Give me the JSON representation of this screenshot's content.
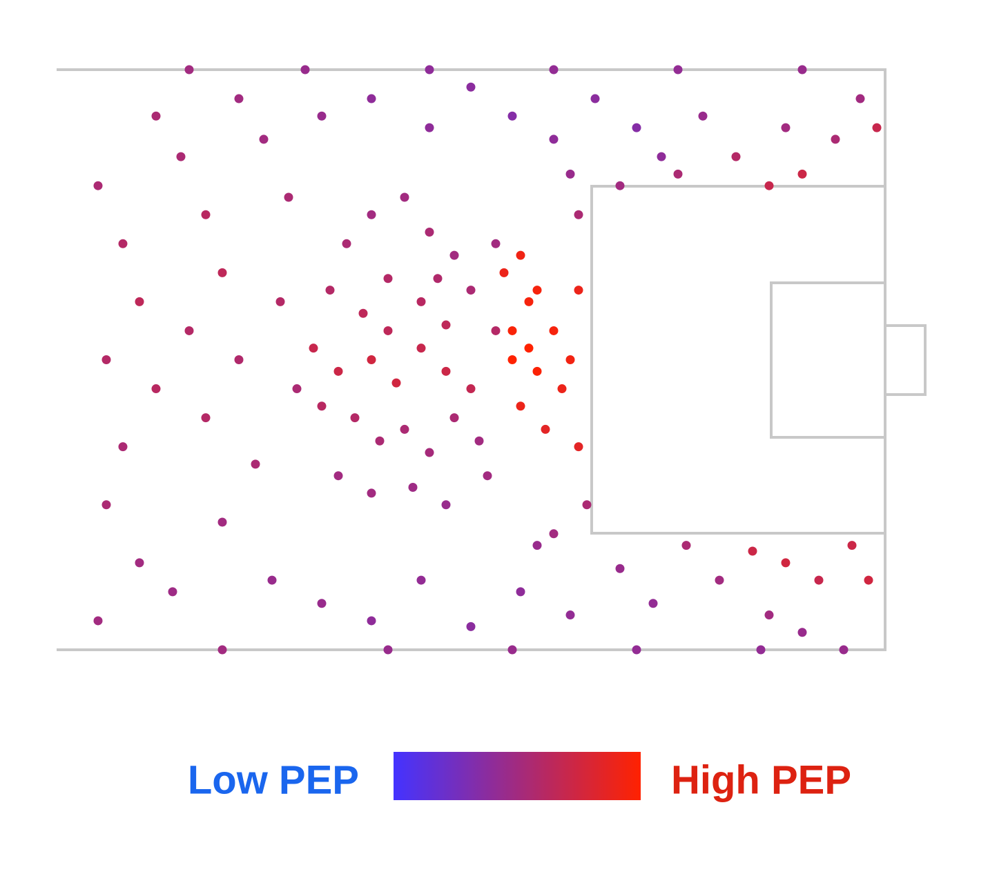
{
  "chart_data": {
    "type": "scatter",
    "x": [
      35,
      38,
      42,
      45,
      48,
      33,
      37,
      40,
      44,
      47,
      50,
      31,
      34,
      38,
      41,
      44,
      47,
      50,
      36,
      39,
      42,
      45,
      48,
      51,
      34,
      38,
      43,
      47,
      52,
      40,
      46,
      32,
      53,
      53,
      54,
      56,
      58,
      55,
      57,
      55,
      58,
      60,
      62,
      61,
      56,
      59,
      63,
      63,
      57,
      5,
      8,
      10,
      6,
      12,
      8,
      6,
      10,
      15,
      18,
      20,
      16,
      22,
      18,
      24,
      20,
      14,
      26,
      25,
      28,
      27,
      29,
      12,
      22,
      5,
      32,
      38,
      45,
      50,
      55,
      60,
      65,
      70,
      73,
      78,
      82,
      86,
      90,
      94,
      97,
      99,
      62,
      68,
      75,
      88,
      16,
      30,
      45,
      60,
      75,
      90,
      32,
      38,
      44,
      50,
      56,
      62,
      68,
      72,
      76,
      80,
      84,
      88,
      92,
      96,
      98,
      86,
      90,
      60,
      58,
      20,
      40,
      55,
      70,
      85,
      95,
      63,
      64
    ],
    "y": [
      70,
      75,
      78,
      72,
      68,
      62,
      58,
      64,
      60,
      56,
      62,
      52,
      48,
      50,
      46,
      52,
      48,
      45,
      40,
      36,
      38,
      34,
      40,
      36,
      30,
      27,
      28,
      25,
      30,
      55,
      64,
      42,
      70,
      55,
      65,
      68,
      62,
      55,
      52,
      50,
      48,
      55,
      50,
      45,
      42,
      38,
      62,
      35,
      60,
      80,
      70,
      60,
      50,
      45,
      35,
      25,
      15,
      85,
      75,
      65,
      55,
      50,
      40,
      32,
      22,
      10,
      12,
      88,
      78,
      60,
      45,
      92,
      95,
      5,
      92,
      95,
      90,
      97,
      92,
      88,
      95,
      90,
      85,
      92,
      85,
      80,
      82,
      88,
      95,
      90,
      82,
      80,
      82,
      90,
      100,
      100,
      100,
      100,
      100,
      100,
      8,
      5,
      12,
      4,
      10,
      6,
      14,
      8,
      18,
      12,
      17,
      15,
      12,
      18,
      12,
      6,
      3,
      20,
      18,
      0,
      0,
      0,
      0,
      0,
      0,
      75,
      25
    ],
    "pep": [
      0.55,
      0.5,
      0.5,
      0.55,
      0.5,
      0.6,
      0.65,
      0.6,
      0.62,
      0.65,
      0.55,
      0.7,
      0.72,
      0.75,
      0.75,
      0.7,
      0.72,
      0.68,
      0.6,
      0.55,
      0.55,
      0.52,
      0.55,
      0.5,
      0.5,
      0.5,
      0.48,
      0.45,
      0.5,
      0.65,
      0.58,
      0.62,
      0.5,
      0.6,
      0.9,
      0.92,
      0.95,
      0.97,
      1,
      1,
      0.98,
      0.95,
      0.93,
      0.9,
      0.9,
      0.85,
      0.9,
      0.85,
      0.95,
      0.55,
      0.6,
      0.65,
      0.6,
      0.62,
      0.55,
      0.55,
      0.5,
      0.55,
      0.62,
      0.65,
      0.6,
      0.58,
      0.6,
      0.55,
      0.5,
      0.48,
      0.45,
      0.5,
      0.55,
      0.6,
      0.55,
      0.55,
      0.5,
      0.5,
      0.45,
      0.4,
      0.4,
      0.38,
      0.35,
      0.4,
      0.38,
      0.35,
      0.4,
      0.45,
      0.6,
      0.7,
      0.72,
      0.55,
      0.5,
      0.7,
      0.45,
      0.5,
      0.55,
      0.5,
      0.5,
      0.45,
      0.4,
      0.42,
      0.42,
      0.45,
      0.45,
      0.4,
      0.42,
      0.38,
      0.4,
      0.42,
      0.45,
      0.42,
      0.55,
      0.5,
      0.72,
      0.75,
      0.7,
      0.72,
      0.75,
      0.5,
      0.45,
      0.5,
      0.45,
      0.5,
      0.45,
      0.45,
      0.42,
      0.42,
      0.45,
      0.55,
      0.55
    ],
    "xlim": [
      0,
      100
    ],
    "ylim": [
      0,
      100
    ],
    "clim": [
      0,
      1
    ],
    "colorscale": [
      "#4433ff",
      "#ff2200"
    ],
    "low_label": "Low PEP",
    "high_label": "High PEP"
  }
}
